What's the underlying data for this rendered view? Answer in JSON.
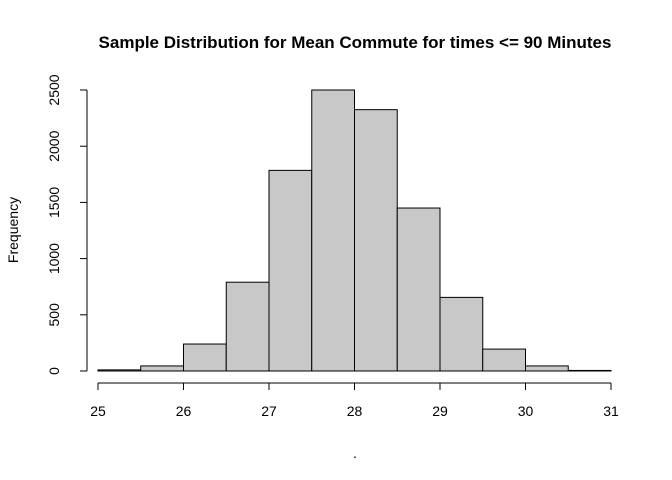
{
  "chart_data": {
    "type": "bar",
    "title": "Sample Distribution for Mean Commute for times <= 90 Minutes",
    "xlabel": ".",
    "ylabel": "Frequency",
    "bins": [
      {
        "from": 25.0,
        "to": 25.5,
        "count": 10
      },
      {
        "from": 25.5,
        "to": 26.0,
        "count": 45
      },
      {
        "from": 26.0,
        "to": 26.5,
        "count": 240
      },
      {
        "from": 26.5,
        "to": 27.0,
        "count": 790
      },
      {
        "from": 27.0,
        "to": 27.5,
        "count": 1785
      },
      {
        "from": 27.5,
        "to": 28.0,
        "count": 2500
      },
      {
        "from": 28.0,
        "to": 28.5,
        "count": 2325
      },
      {
        "from": 28.5,
        "to": 29.0,
        "count": 1450
      },
      {
        "from": 29.0,
        "to": 29.5,
        "count": 655
      },
      {
        "from": 29.5,
        "to": 30.0,
        "count": 195
      },
      {
        "from": 30.0,
        "to": 30.5,
        "count": 45
      },
      {
        "from": 30.5,
        "to": 31.0,
        "count": 5
      }
    ],
    "xlim": [
      25,
      31
    ],
    "ylim": [
      0,
      2500
    ],
    "x_ticks": [
      "25",
      "26",
      "27",
      "28",
      "29",
      "30",
      "31"
    ],
    "y_ticks": [
      "0",
      "500",
      "1000",
      "1500",
      "2000",
      "2500"
    ],
    "grid": false,
    "bar_color": "#c8c8c8",
    "edge_color": "#000000"
  }
}
